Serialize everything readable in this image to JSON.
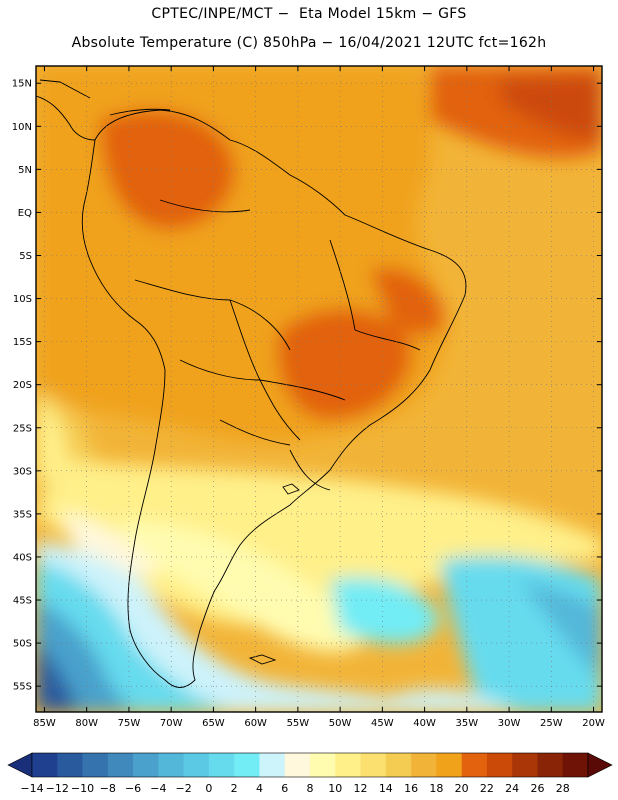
{
  "title": {
    "line1": "CPTEC/INPE/MCT −  Eta Model 15km − GFS",
    "line2": "Absolute Temperature (C) 850hPa − 16/04/2021 12UTC fct=162h"
  },
  "map": {
    "lat_labels": [
      "15N",
      "10N",
      "5N",
      "EQ",
      "5S",
      "10S",
      "15S",
      "20S",
      "25S",
      "30S",
      "35S",
      "40S",
      "45S",
      "50S",
      "55S"
    ],
    "lon_labels": [
      "85W",
      "80W",
      "75W",
      "70W",
      "65W",
      "60W",
      "55W",
      "50W",
      "45W",
      "40W",
      "35W",
      "30W",
      "25W",
      "20W"
    ],
    "lat_range": [
      "17N",
      "58S"
    ],
    "lon_range": [
      "86W",
      "19W"
    ],
    "grid": "dotted"
  },
  "colorbar": {
    "labels": [
      "-14",
      "-12",
      "-10",
      "-8",
      "-6",
      "-4",
      "-2",
      "0",
      "2",
      "4",
      "6",
      "8",
      "10",
      "12",
      "14",
      "16",
      "18",
      "20",
      "22",
      "24",
      "26",
      "28"
    ],
    "colors": [
      "#1f3f8f",
      "#2a5a9e",
      "#3473ad",
      "#3f89bd",
      "#49a1cc",
      "#52b7d9",
      "#5cc9e4",
      "#66dbee",
      "#72ecf5",
      "#cdf3fb",
      "#fff8dc",
      "#fffcb0",
      "#fff08a",
      "#fbe070",
      "#f5cc52",
      "#f2b438",
      "#f0a21a",
      "#e2620e",
      "#cc4a08",
      "#aa3506",
      "#8a2406",
      "#6e1306"
    ],
    "left_arrow_color": "#1a2f7a",
    "right_arrow_color": "#5a0a06"
  }
}
